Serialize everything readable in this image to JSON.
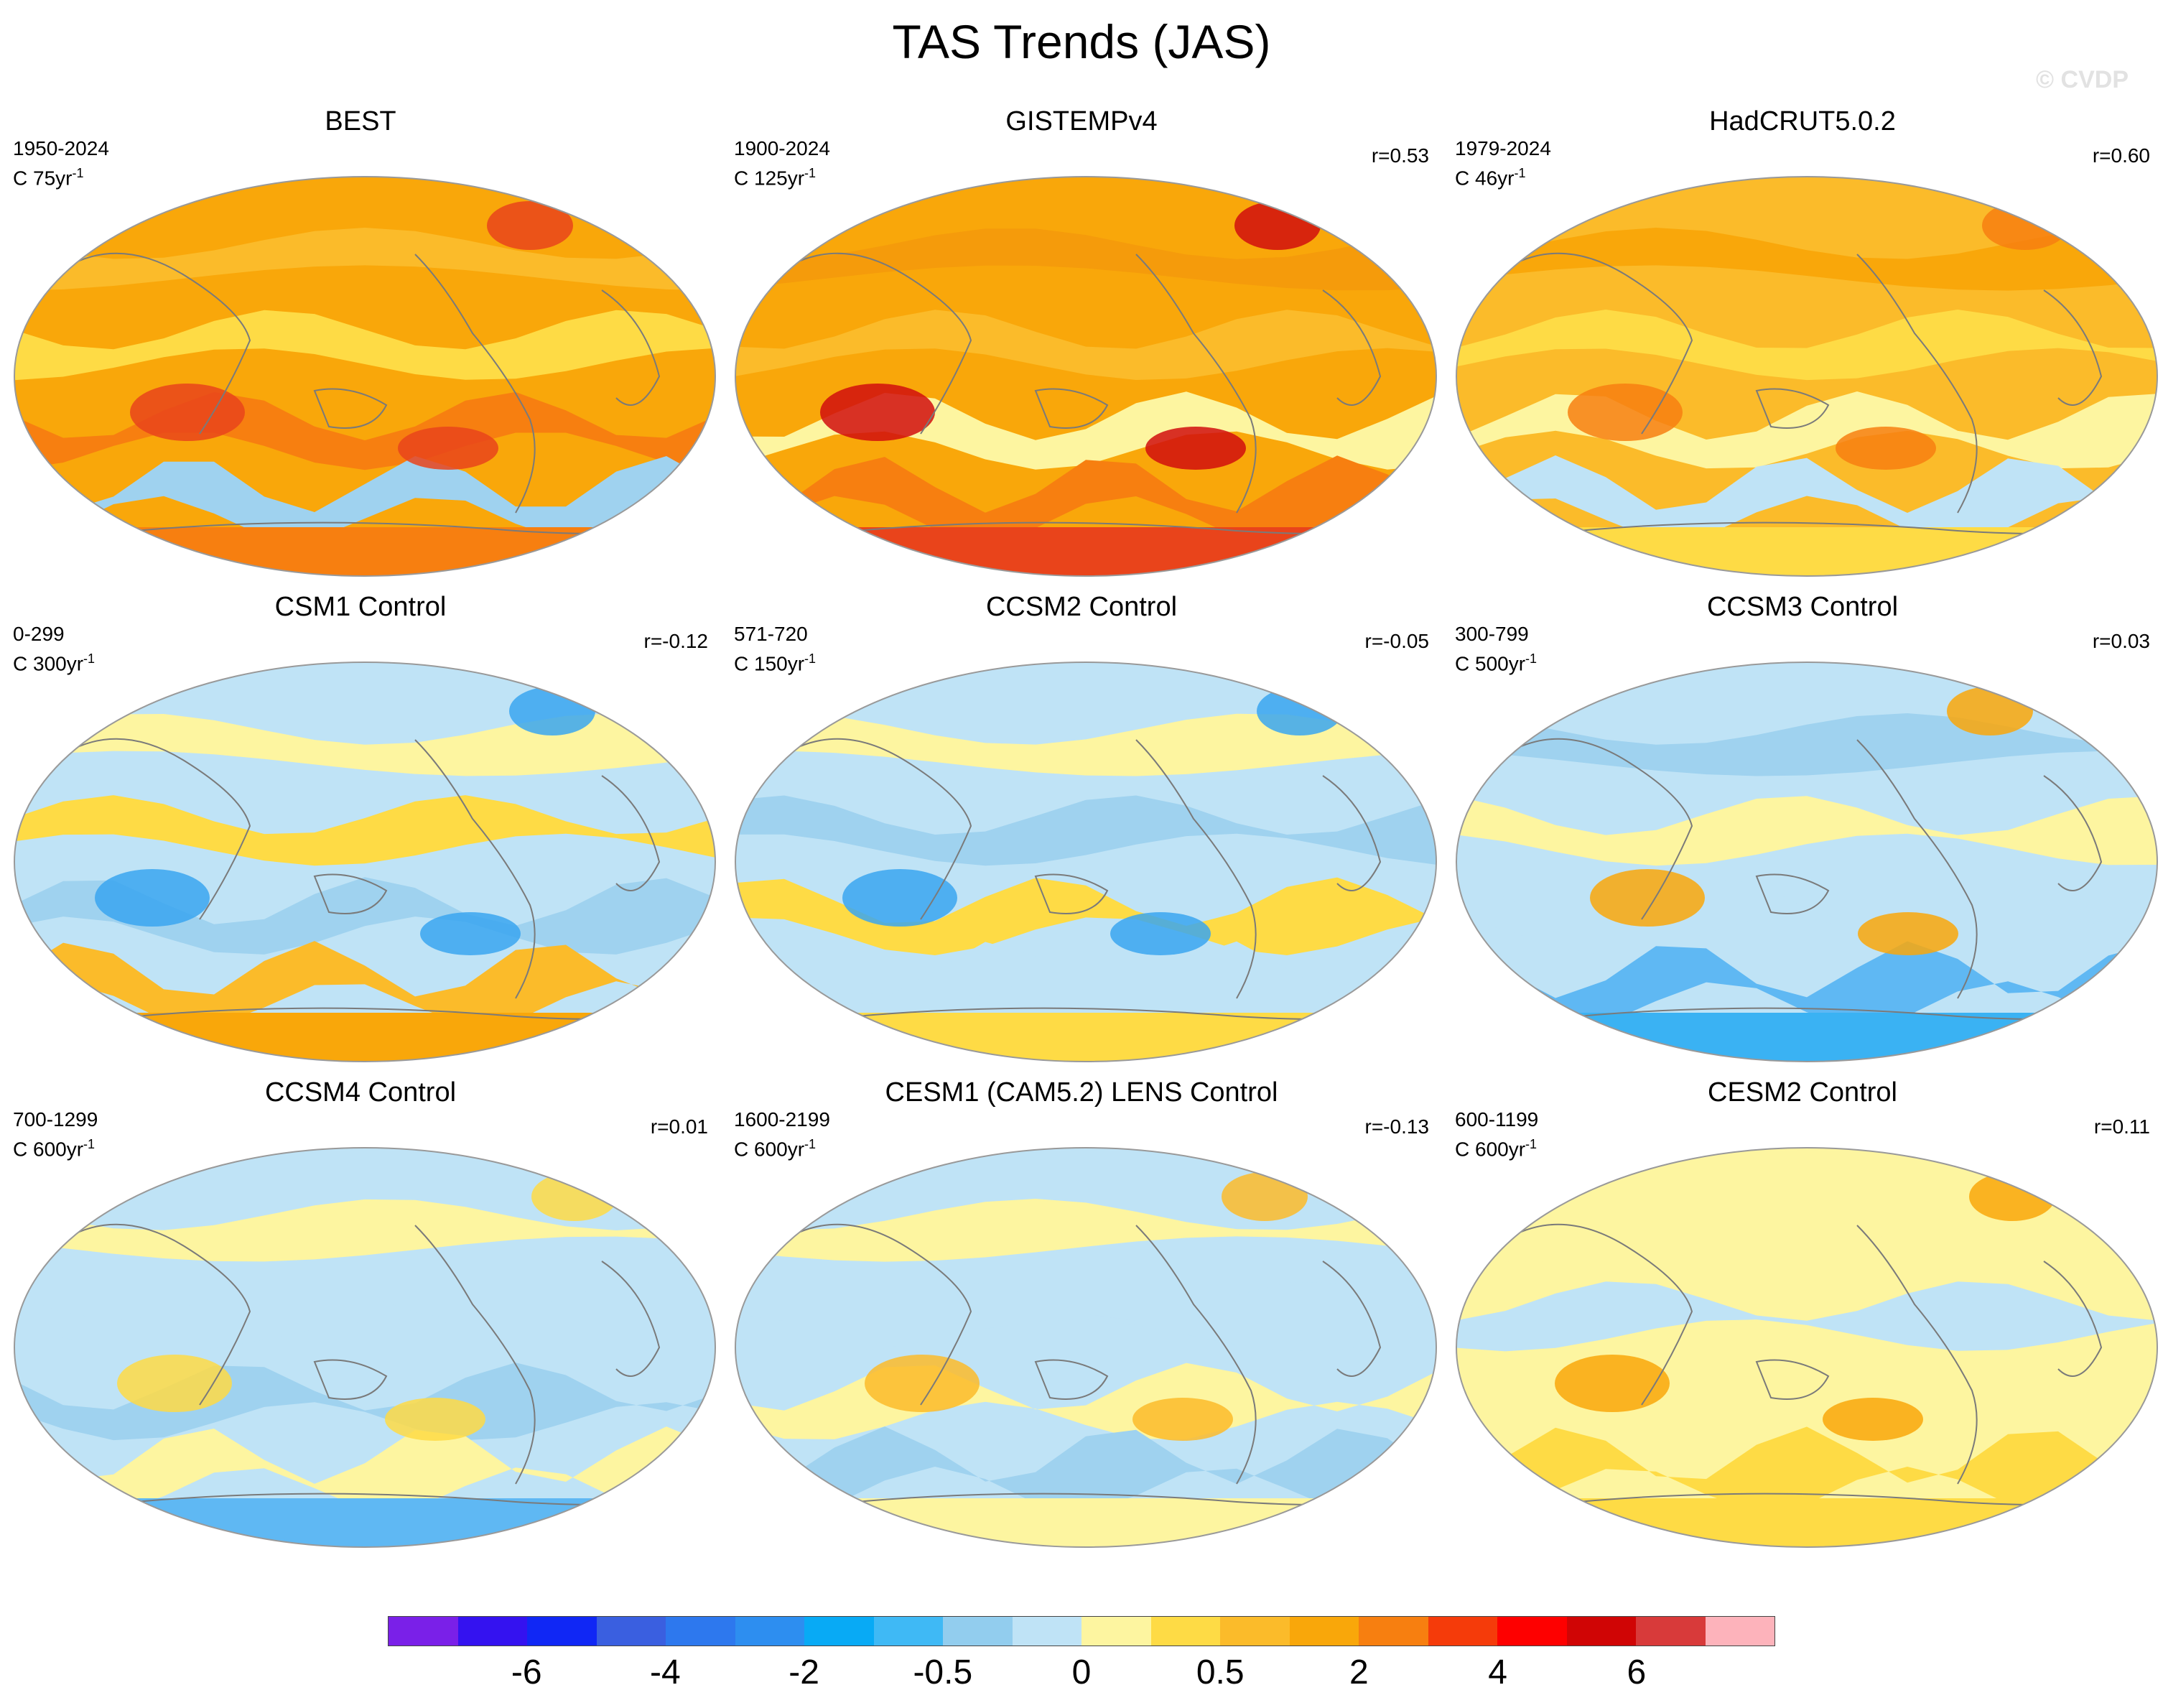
{
  "page": {
    "title": "TAS Trends (JAS)",
    "watermark": "© CVDP"
  },
  "chart_data": [
    {
      "type": "heatmap",
      "title": "BEST",
      "period": "1950-2024",
      "scale_label": "C 75yr",
      "scale_exponent": "-1",
      "correlation": "",
      "fill": {
        "base": "#f9a70a",
        "bands": [
          "#fbbb2a",
          "#fedb45",
          "#f77f10",
          "#9fd2ef"
        ],
        "polar_south": "#f77f10",
        "accent": "#e9441b"
      }
    },
    {
      "type": "heatmap",
      "title": "GISTEMPv4",
      "period": "1900-2024",
      "scale_label": "C 125yr",
      "scale_exponent": "-1",
      "correlation": "r=0.53",
      "fill": {
        "base": "#f9a70a",
        "bands": [
          "#f59b0b",
          "#fbbb2a",
          "#fdf5a0",
          "#f77f10"
        ],
        "polar_south": "#e9441b",
        "accent": "#d10e0e"
      }
    },
    {
      "type": "heatmap",
      "title": "HadCRUT5.0.2",
      "period": "1979-2024",
      "scale_label": "C 46yr",
      "scale_exponent": "-1",
      "correlation": "r=0.60",
      "fill": {
        "base": "#fbbb2a",
        "bands": [
          "#f9a70a",
          "#fedb45",
          "#fdf5a0",
          "#bfe3f6"
        ],
        "polar_south": "#fedb45",
        "accent": "#f77f10"
      }
    },
    {
      "type": "heatmap",
      "title": "CSM1 Control",
      "period": "0-299",
      "scale_label": "C 300yr",
      "scale_exponent": "-1",
      "correlation": "r=-0.12",
      "fill": {
        "base": "#bfe3f6",
        "bands": [
          "#fdf5a0",
          "#fedb45",
          "#9fd2ef",
          "#fbbb2a"
        ],
        "polar_south": "#f9a70a",
        "accent": "#3aa6f0"
      }
    },
    {
      "type": "heatmap",
      "title": "CCSM2 Control",
      "period": "571-720",
      "scale_label": "C 150yr",
      "scale_exponent": "-1",
      "correlation": "r=-0.05",
      "fill": {
        "base": "#bfe3f6",
        "bands": [
          "#fdf5a0",
          "#9fd2ef",
          "#fedb45",
          "#bfe3f6"
        ],
        "polar_south": "#fedb45",
        "accent": "#3aa6f0"
      }
    },
    {
      "type": "heatmap",
      "title": "CCSM3 Control",
      "period": "300-799",
      "scale_label": "C 500yr",
      "scale_exponent": "-1",
      "correlation": "r=0.03",
      "fill": {
        "base": "#bfe3f6",
        "bands": [
          "#9fd2ef",
          "#fdf5a0",
          "#bfe3f6",
          "#5fb8f3"
        ],
        "polar_south": "#3ab2f3",
        "accent": "#f9a70a"
      }
    },
    {
      "type": "heatmap",
      "title": "CCSM4 Control",
      "period": "700-1299",
      "scale_label": "C 600yr",
      "scale_exponent": "-1",
      "correlation": "r=0.01",
      "fill": {
        "base": "#bfe3f6",
        "bands": [
          "#fdf5a0",
          "#bfe3f6",
          "#9fd2ef",
          "#fdf5a0"
        ],
        "polar_south": "#5fb8f3",
        "accent": "#fedb45"
      }
    },
    {
      "type": "heatmap",
      "title": "CESM1 (CAM5.2) LENS Control",
      "period": "1600-2199",
      "scale_label": "C 600yr",
      "scale_exponent": "-1",
      "correlation": "r=-0.13",
      "fill": {
        "base": "#bfe3f6",
        "bands": [
          "#fdf5a0",
          "#bfe3f6",
          "#fdf5a0",
          "#9fd2ef"
        ],
        "polar_south": "#fdf5a0",
        "accent": "#fbbb2a"
      }
    },
    {
      "type": "heatmap",
      "title": "CESM2 Control",
      "period": "600-1199",
      "scale_label": "C 600yr",
      "scale_exponent": "-1",
      "correlation": "r=0.11",
      "fill": {
        "base": "#fdf5a0",
        "bands": [
          "#fdf5a0",
          "#bfe3f6",
          "#fdf5a0",
          "#fedb45"
        ],
        "polar_south": "#fedb45",
        "accent": "#f9a70a"
      }
    }
  ],
  "colorbar": {
    "colors": [
      "#7a20e8",
      "#3412f0",
      "#1027f5",
      "#3a5fe0",
      "#2d78ee",
      "#2d8ef0",
      "#08aaf5",
      "#3fb9f5",
      "#92cdee",
      "#bfe3f6",
      "#fdf5a0",
      "#fedb45",
      "#fbbb2a",
      "#f9a70a",
      "#f77f10",
      "#f53b0a",
      "#fe0000",
      "#d00505",
      "#d83a3a",
      "#fdb3bb"
    ],
    "labels": [
      {
        "text": "-6",
        "index": 2
      },
      {
        "text": "-4",
        "index": 4
      },
      {
        "text": "-2",
        "index": 6
      },
      {
        "text": "-0.5",
        "index": 8
      },
      {
        "text": "0",
        "index": 10
      },
      {
        "text": "0.5",
        "index": 12
      },
      {
        "text": "2",
        "index": 14
      },
      {
        "text": "4",
        "index": 16
      },
      {
        "text": "6",
        "index": 18
      }
    ]
  }
}
